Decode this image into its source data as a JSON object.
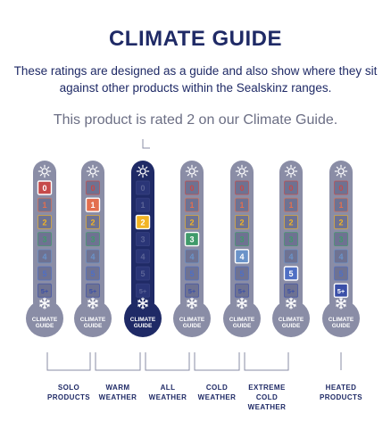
{
  "title": "CLIMATE GUIDE",
  "subtitle": "These ratings are designed as a guide and also show where they sit against other products within the Sealskinz ranges.",
  "rating_text": "This product is rated 2 on our Climate Guide.",
  "levels": [
    "0",
    "1",
    "2",
    "3",
    "4",
    "5",
    "5+"
  ],
  "bulb_text": [
    "CLIMATE",
    "GUIDE"
  ],
  "thermometers": [
    {
      "highlight": "0",
      "active": false
    },
    {
      "highlight": "1",
      "active": false
    },
    {
      "highlight": "2",
      "active": true
    },
    {
      "highlight": "3",
      "active": false
    },
    {
      "highlight": "4",
      "active": false
    },
    {
      "highlight": "5",
      "active": false
    },
    {
      "highlight": "5+",
      "active": false
    }
  ],
  "categories": [
    {
      "label": "SOLO\nPRODUCTS"
    },
    {
      "label": "WARM\nWEATHER"
    },
    {
      "label": "ALL\nWEATHER"
    },
    {
      "label": "COLD\nWEATHER"
    },
    {
      "label": "EXTREME\nCOLD\nWEATHER"
    },
    {
      "label": "HEATED\nPRODUCTS"
    }
  ],
  "colors": {
    "navy": "#1f2a66",
    "grey_tube": "#8a8da6",
    "level_0": "#c64a4a",
    "level_1": "#e36f4f",
    "level_2": "#f2b424",
    "level_3": "#3f9a6a",
    "level_4": "#6a93c9",
    "level_5": "#4f6fc4",
    "level_5plus": "#3a4fa8"
  }
}
